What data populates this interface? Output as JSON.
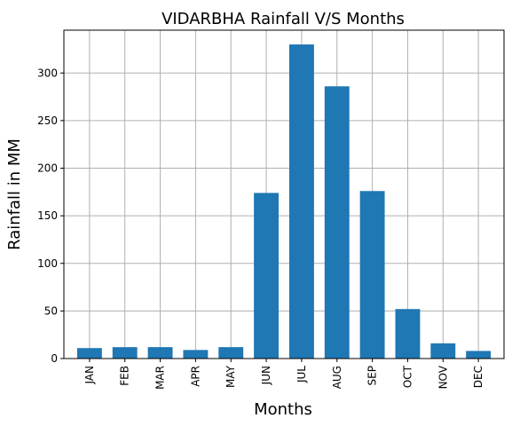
{
  "chart_data": {
    "type": "bar",
    "title": "VIDARBHA Rainfall V/S Months",
    "xlabel": "Months",
    "ylabel": "Rainfall in MM",
    "categories": [
      "JAN",
      "FEB",
      "MAR",
      "APR",
      "MAY",
      "JUN",
      "JUL",
      "AUG",
      "SEP",
      "OCT",
      "NOV",
      "DEC"
    ],
    "values": [
      11,
      12,
      12,
      9,
      12,
      174,
      330,
      286,
      176,
      52,
      16,
      8
    ],
    "ylim": [
      0,
      345
    ],
    "yticks": [
      0,
      50,
      100,
      150,
      200,
      250,
      300
    ],
    "grid": true,
    "bar_color": "#1f77b4",
    "grid_color": "#b0b0b0"
  }
}
